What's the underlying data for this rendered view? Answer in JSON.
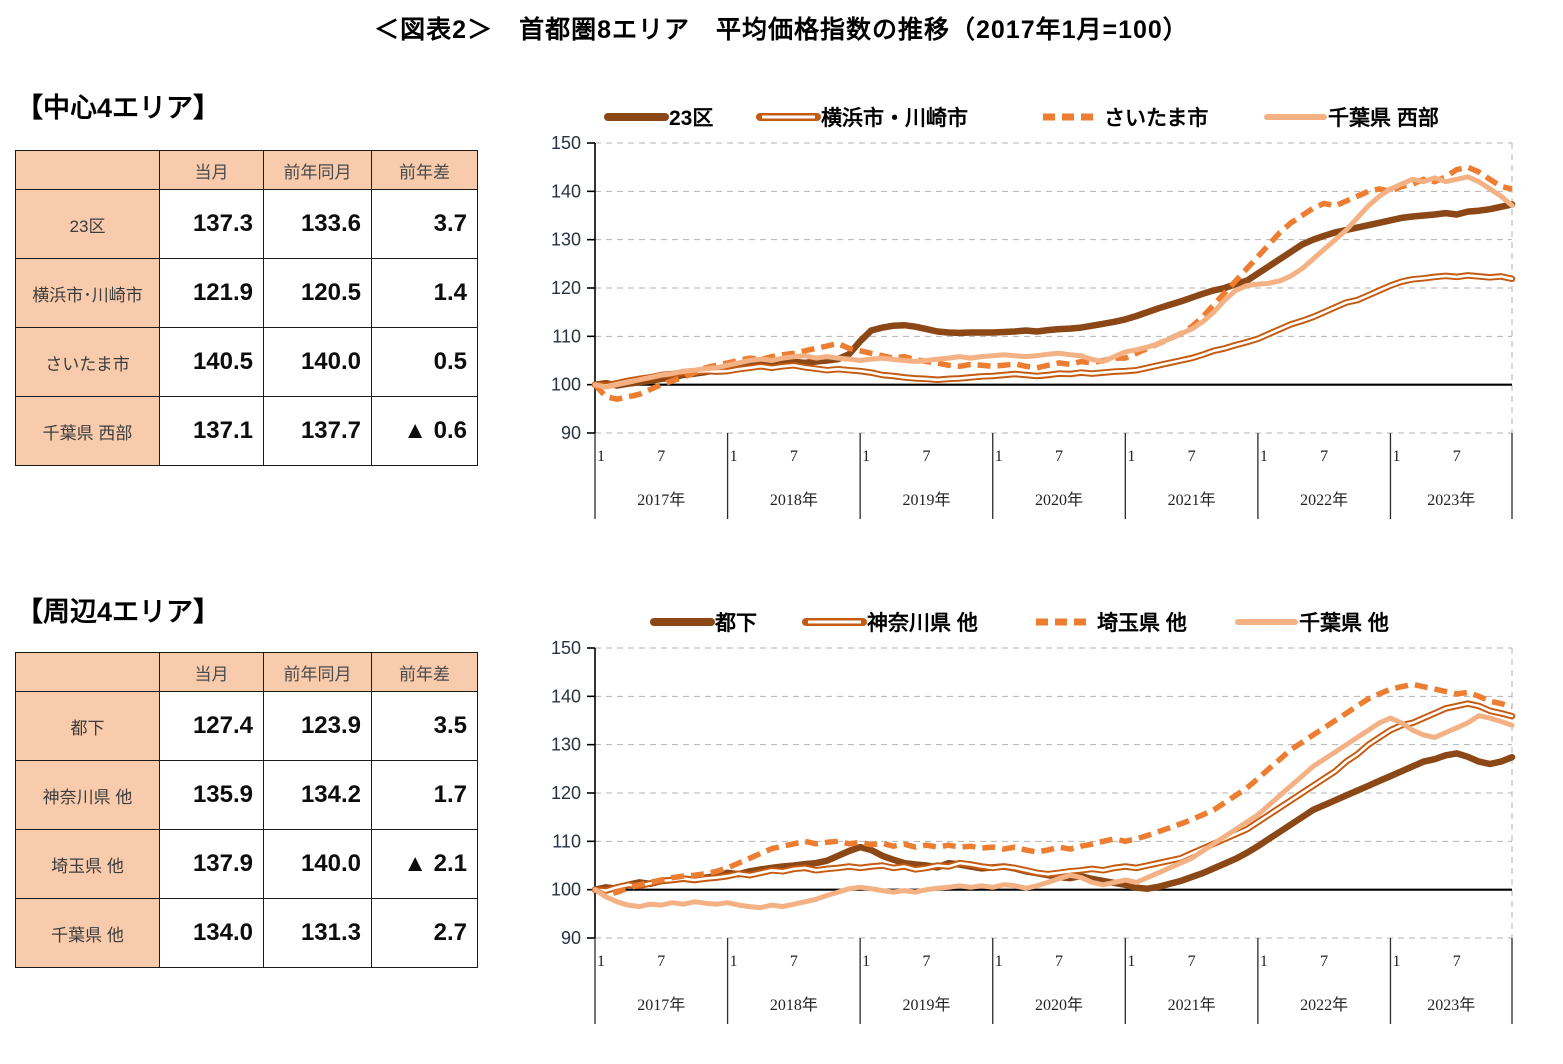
{
  "title": "＜図表2＞　首都圏8エリア　平均価格指数の推移（2017年1月=100）",
  "palette": {
    "table_header_fill": "#F8CBAD",
    "grid_color": "#B3B3B3",
    "axis_color": "#000000",
    "ytick_text": "#263245",
    "xtick_text": "#222222"
  },
  "sections": [
    {
      "heading": "【中心4エリア】",
      "table": {
        "headers": [
          "",
          "当月",
          "前年同月",
          "前年差"
        ],
        "rows": [
          [
            "23区",
            "137.3",
            "133.6",
            "3.7"
          ],
          [
            "横浜市･川崎市",
            "121.9",
            "120.5",
            "1.4"
          ],
          [
            "さいたま市",
            "140.5",
            "140.0",
            "0.5"
          ],
          [
            "千葉県 西部",
            "137.1",
            "137.7",
            "▲ 0.6"
          ]
        ]
      }
    },
    {
      "heading": "【周辺4エリア】",
      "table": {
        "headers": [
          "",
          "当月",
          "前年同月",
          "前年差"
        ],
        "rows": [
          [
            "都下",
            "127.4",
            "123.9",
            "3.5"
          ],
          [
            "神奈川県 他",
            "135.9",
            "134.2",
            "1.7"
          ],
          [
            "埼玉県 他",
            "137.9",
            "140.0",
            "▲ 2.1"
          ],
          [
            "千葉県 他",
            "134.0",
            "131.3",
            "2.7"
          ]
        ]
      }
    }
  ],
  "chart_data": [
    {
      "type": "line",
      "title": "中心4エリア 平均価格指数",
      "ylim": [
        90,
        150
      ],
      "ytick_step": 10,
      "baseline": 100,
      "grid": "dashed-horizontal",
      "legend_position": "top",
      "legend_offsets": [
        88,
        240,
        523,
        747
      ],
      "x_month_ticks": [
        "1",
        "7"
      ],
      "years": [
        "2017年",
        "2018年",
        "2019年",
        "2020年",
        "2021年",
        "2022年",
        "2023年"
      ],
      "series": [
        {
          "name": "23区",
          "style": "thick",
          "color": "#8B4715",
          "values": [
            100.0,
            100.3,
            99.8,
            100.2,
            100.5,
            100.8,
            101.2,
            101.5,
            102.0,
            102.3,
            102.6,
            103.0,
            103.2,
            103.6,
            104.0,
            104.3,
            104.0,
            104.4,
            104.7,
            104.5,
            104.8,
            105.0,
            105.3,
            106.3,
            109.0,
            111.2,
            111.8,
            112.2,
            112.3,
            112.0,
            111.5,
            111.0,
            110.8,
            110.7,
            110.8,
            110.8,
            110.8,
            110.9,
            111.0,
            111.2,
            111.0,
            111.3,
            111.5,
            111.6,
            111.8,
            112.2,
            112.6,
            113.0,
            113.5,
            114.2,
            115.0,
            115.8,
            116.5,
            117.2,
            118.0,
            118.8,
            119.5,
            120.0,
            120.8,
            121.5,
            123.0,
            124.5,
            126.0,
            127.5,
            129.0,
            130.0,
            130.8,
            131.5,
            132.0,
            132.5,
            133.0,
            133.5,
            134.0,
            134.5,
            134.8,
            135.0,
            135.2,
            135.5,
            135.2,
            135.8,
            136.0,
            136.3,
            136.8,
            137.3
          ]
        },
        {
          "name": "横浜市・川崎市",
          "style": "double",
          "color": "#C55A11",
          "values": [
            100.0,
            99.8,
            100.3,
            100.8,
            101.2,
            101.5,
            102.0,
            102.2,
            102.5,
            102.6,
            102.8,
            102.7,
            102.8,
            103.2,
            103.5,
            103.8,
            103.5,
            103.8,
            104.0,
            103.6,
            103.3,
            103.0,
            103.2,
            103.0,
            102.8,
            102.5,
            102.0,
            101.8,
            101.5,
            101.3,
            101.2,
            101.0,
            101.2,
            101.3,
            101.5,
            101.7,
            101.8,
            102.0,
            102.2,
            102.0,
            101.8,
            102.0,
            102.3,
            102.2,
            102.5,
            102.3,
            102.5,
            102.7,
            102.8,
            103.0,
            103.5,
            104.0,
            104.5,
            105.0,
            105.5,
            106.2,
            107.0,
            107.5,
            108.2,
            108.8,
            109.5,
            110.5,
            111.5,
            112.5,
            113.2,
            114.0,
            115.0,
            116.0,
            117.0,
            117.5,
            118.5,
            119.5,
            120.5,
            121.3,
            121.8,
            122.0,
            122.3,
            122.5,
            122.3,
            122.6,
            122.4,
            122.2,
            122.4,
            121.9
          ]
        },
        {
          "name": "さいたま市",
          "style": "dashed",
          "color": "#ED7D31",
          "values": [
            100.0,
            97.5,
            97.0,
            97.5,
            98.0,
            99.0,
            100.0,
            100.8,
            101.5,
            102.5,
            103.5,
            104.0,
            104.5,
            105.0,
            105.5,
            105.2,
            105.8,
            106.2,
            106.5,
            107.0,
            107.5,
            108.0,
            108.5,
            107.5,
            107.0,
            106.5,
            106.0,
            105.5,
            105.8,
            105.2,
            104.8,
            104.5,
            104.0,
            103.8,
            104.2,
            104.0,
            103.8,
            104.0,
            104.3,
            103.8,
            103.5,
            104.0,
            104.5,
            104.2,
            104.8,
            104.5,
            105.0,
            105.5,
            105.5,
            106.5,
            107.5,
            108.5,
            109.5,
            110.5,
            112.0,
            114.0,
            116.5,
            119.0,
            121.5,
            124.0,
            126.5,
            129.0,
            131.5,
            133.5,
            135.0,
            136.5,
            137.5,
            137.0,
            138.0,
            139.0,
            140.0,
            140.5,
            140.0,
            141.0,
            141.5,
            142.5,
            142.0,
            143.0,
            144.5,
            145.0,
            144.0,
            142.5,
            141.0,
            140.5
          ]
        },
        {
          "name": "千葉県 西部",
          "style": "light",
          "color": "#F4B183",
          "values": [
            100.0,
            99.5,
            100.0,
            100.5,
            101.0,
            101.5,
            102.0,
            102.3,
            102.8,
            103.0,
            103.3,
            103.5,
            104.0,
            104.5,
            105.0,
            105.3,
            105.0,
            105.5,
            105.8,
            106.0,
            105.5,
            105.8,
            105.5,
            105.3,
            105.0,
            105.3,
            105.5,
            105.2,
            105.0,
            104.8,
            105.0,
            105.3,
            105.5,
            105.8,
            105.5,
            105.8,
            106.0,
            106.2,
            106.0,
            105.8,
            106.0,
            106.3,
            106.5,
            106.2,
            106.0,
            105.2,
            104.8,
            105.8,
            106.8,
            107.2,
            107.8,
            108.5,
            109.5,
            110.5,
            111.5,
            113.0,
            115.0,
            117.5,
            119.5,
            120.5,
            120.8,
            121.0,
            121.5,
            122.5,
            124.0,
            126.0,
            128.0,
            130.0,
            132.0,
            134.5,
            137.0,
            139.0,
            140.5,
            141.5,
            142.5,
            142.0,
            142.8,
            142.0,
            142.5,
            143.0,
            142.0,
            140.5,
            139.0,
            137.1
          ]
        }
      ]
    },
    {
      "type": "line",
      "title": "周辺4エリア 平均価格指数",
      "ylim": [
        90,
        150
      ],
      "ytick_step": 10,
      "baseline": 100,
      "grid": "dashed-horizontal",
      "legend_position": "top",
      "legend_offsets": [
        134,
        286,
        516,
        718
      ],
      "x_month_ticks": [
        "1",
        "7"
      ],
      "years": [
        "2017年",
        "2018年",
        "2019年",
        "2020年",
        "2021年",
        "2022年",
        "2023年"
      ],
      "series": [
        {
          "name": "都下",
          "style": "thick",
          "color": "#8B4715",
          "values": [
            100.0,
            100.5,
            100.2,
            101.0,
            101.5,
            101.2,
            101.8,
            102.0,
            102.3,
            102.0,
            102.5,
            102.8,
            103.5,
            103.2,
            103.8,
            104.2,
            104.5,
            104.8,
            105.0,
            105.3,
            105.5,
            106.0,
            107.0,
            108.0,
            108.8,
            108.2,
            107.0,
            106.2,
            105.5,
            105.2,
            105.0,
            104.6,
            105.5,
            105.2,
            104.8,
            104.4,
            104.6,
            104.8,
            104.4,
            103.8,
            103.4,
            103.0,
            102.6,
            102.4,
            102.8,
            102.2,
            101.8,
            101.4,
            101.0,
            100.4,
            100.2,
            100.6,
            101.2,
            101.8,
            102.6,
            103.4,
            104.4,
            105.4,
            106.4,
            107.6,
            109.0,
            110.5,
            112.0,
            113.5,
            115.0,
            116.5,
            117.5,
            118.5,
            119.5,
            120.5,
            121.5,
            122.5,
            123.5,
            124.5,
            125.5,
            126.5,
            127.0,
            127.8,
            128.2,
            127.5,
            126.5,
            126.0,
            126.5,
            127.4
          ]
        },
        {
          "name": "神奈川県 他",
          "style": "double",
          "color": "#C55A11",
          "values": [
            100.0,
            99.8,
            100.5,
            101.0,
            100.8,
            101.3,
            101.8,
            102.0,
            102.3,
            102.0,
            102.3,
            102.5,
            102.8,
            103.3,
            103.0,
            103.5,
            104.0,
            103.8,
            104.3,
            104.5,
            104.0,
            104.3,
            104.5,
            104.8,
            104.5,
            104.8,
            105.0,
            104.5,
            104.8,
            104.2,
            104.5,
            105.0,
            104.8,
            105.5,
            105.2,
            104.8,
            104.5,
            104.8,
            104.5,
            104.0,
            103.5,
            103.2,
            103.5,
            103.8,
            104.0,
            104.3,
            104.0,
            104.5,
            104.8,
            104.5,
            105.0,
            105.5,
            106.0,
            106.5,
            107.5,
            108.5,
            109.5,
            110.5,
            111.5,
            112.5,
            114.0,
            115.5,
            117.0,
            118.5,
            120.0,
            121.5,
            123.0,
            124.5,
            126.5,
            128.0,
            130.0,
            131.5,
            133.0,
            134.0,
            134.5,
            135.5,
            136.5,
            137.5,
            138.0,
            138.5,
            138.0,
            137.0,
            136.5,
            135.9
          ]
        },
        {
          "name": "埼玉県 他",
          "style": "dashed",
          "color": "#ED7D31",
          "values": [
            100.0,
            98.8,
            99.5,
            100.3,
            101.0,
            101.5,
            102.0,
            102.5,
            102.8,
            103.0,
            103.3,
            103.8,
            104.5,
            105.5,
            106.5,
            107.5,
            108.5,
            109.0,
            109.5,
            110.0,
            109.5,
            109.8,
            110.0,
            109.5,
            109.8,
            109.3,
            109.6,
            109.0,
            109.4,
            108.8,
            109.2,
            108.8,
            109.2,
            108.8,
            109.0,
            108.6,
            108.8,
            108.4,
            108.8,
            108.2,
            107.8,
            108.2,
            108.8,
            108.4,
            109.0,
            109.4,
            110.0,
            110.5,
            110.0,
            110.5,
            111.2,
            112.0,
            112.8,
            113.6,
            114.5,
            115.5,
            116.5,
            118.0,
            119.5,
            121.0,
            123.0,
            125.0,
            127.0,
            129.0,
            130.5,
            132.0,
            133.5,
            135.0,
            136.5,
            138.0,
            139.5,
            140.5,
            141.5,
            142.0,
            142.5,
            142.0,
            141.5,
            141.0,
            140.5,
            140.8,
            140.0,
            139.0,
            138.5,
            137.9
          ]
        },
        {
          "name": "千葉県 他",
          "style": "light",
          "color": "#F4B183",
          "values": [
            100.0,
            98.5,
            97.5,
            96.8,
            96.5,
            97.0,
            96.8,
            97.3,
            97.0,
            97.5,
            97.2,
            97.0,
            97.3,
            96.8,
            96.5,
            96.3,
            96.8,
            96.5,
            97.0,
            97.5,
            98.0,
            98.8,
            99.5,
            100.2,
            100.5,
            100.2,
            99.8,
            99.5,
            99.8,
            99.5,
            100.0,
            100.3,
            100.5,
            100.8,
            100.5,
            100.8,
            100.5,
            101.0,
            100.8,
            100.3,
            100.8,
            101.5,
            102.3,
            103.0,
            102.5,
            101.5,
            101.0,
            101.5,
            102.0,
            101.5,
            102.5,
            103.5,
            104.5,
            105.5,
            106.5,
            108.0,
            109.5,
            111.0,
            112.5,
            114.0,
            115.5,
            117.5,
            119.5,
            121.5,
            123.5,
            125.5,
            127.0,
            128.5,
            130.0,
            131.5,
            133.0,
            134.5,
            135.5,
            134.5,
            133.0,
            132.0,
            131.5,
            132.5,
            133.5,
            134.5,
            136.0,
            135.5,
            134.8,
            134.0
          ]
        }
      ]
    }
  ]
}
